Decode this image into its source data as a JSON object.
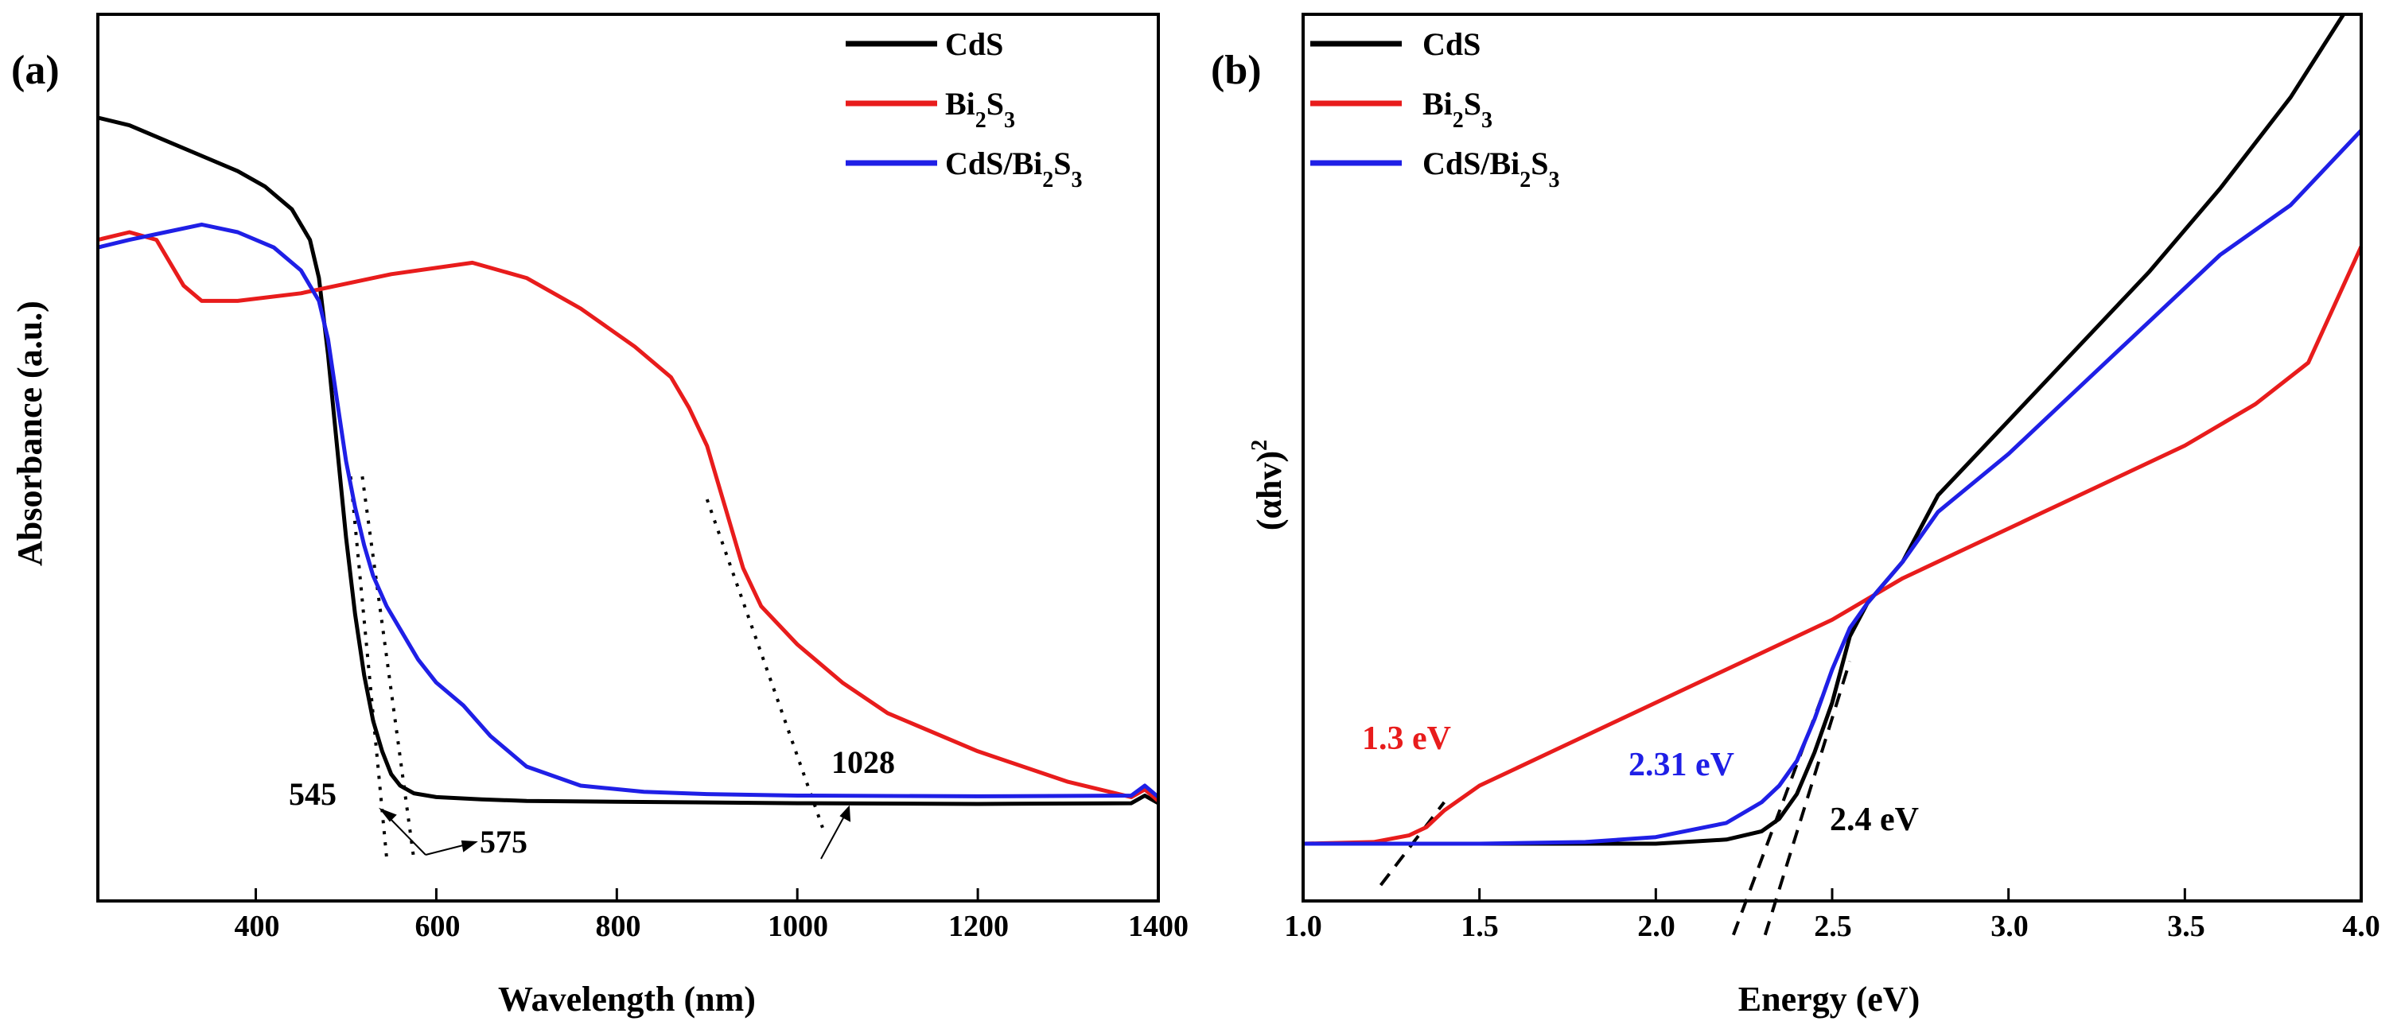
{
  "chart_data": [
    {
      "panel_label": "(a)",
      "type": "line",
      "xlabel": "Wavelength (nm)",
      "ylabel": "Absorbance (a.u.)",
      "xlim": [
        225,
        1400
      ],
      "ylim": [
        0,
        1
      ],
      "x_ticks": [
        400,
        600,
        800,
        1000,
        1200,
        1400
      ],
      "x_tick_labels": [
        "400",
        "600",
        "800",
        "1000",
        "1200",
        "1400"
      ],
      "legend": {
        "position": "top-right",
        "entries": [
          {
            "name": "CdS",
            "color": "#000000"
          },
          {
            "name": "Bi2S3",
            "color": "#e81c1c"
          },
          {
            "name": "CdS/Bi2S3",
            "color": "#1f1fe6"
          }
        ]
      },
      "series": [
        {
          "name": "CdS",
          "color": "#000000",
          "x": [
            225,
            260,
            300,
            340,
            380,
            410,
            440,
            460,
            470,
            480,
            490,
            500,
            510,
            520,
            530,
            540,
            550,
            560,
            575,
            600,
            650,
            700,
            800,
            1000,
            1200,
            1370,
            1385,
            1400
          ],
          "y": [
            0.95,
            0.94,
            0.92,
            0.9,
            0.88,
            0.86,
            0.83,
            0.79,
            0.74,
            0.64,
            0.52,
            0.4,
            0.3,
            0.22,
            0.16,
            0.12,
            0.09,
            0.075,
            0.065,
            0.06,
            0.057,
            0.055,
            0.054,
            0.052,
            0.051,
            0.052,
            0.062,
            0.052
          ]
        },
        {
          "name": "Bi2S3",
          "color": "#e81c1c",
          "x": [
            225,
            260,
            290,
            320,
            340,
            380,
            450,
            550,
            640,
            700,
            760,
            820,
            860,
            880,
            900,
            920,
            940,
            960,
            1000,
            1050,
            1100,
            1200,
            1300,
            1370,
            1385,
            1400
          ],
          "y": [
            0.79,
            0.8,
            0.79,
            0.73,
            0.71,
            0.71,
            0.72,
            0.745,
            0.76,
            0.74,
            0.7,
            0.65,
            0.61,
            0.57,
            0.52,
            0.44,
            0.36,
            0.31,
            0.26,
            0.21,
            0.17,
            0.12,
            0.08,
            0.06,
            0.07,
            0.055
          ]
        },
        {
          "name": "CdS/Bi2S3",
          "color": "#1f1fe6",
          "x": [
            225,
            260,
            300,
            340,
            380,
            420,
            450,
            470,
            480,
            490,
            500,
            510,
            520,
            530,
            545,
            560,
            580,
            600,
            630,
            660,
            700,
            760,
            830,
            900,
            1000,
            1200,
            1370,
            1385,
            1400
          ],
          "y": [
            0.78,
            0.79,
            0.8,
            0.81,
            0.8,
            0.78,
            0.75,
            0.71,
            0.66,
            0.58,
            0.5,
            0.44,
            0.39,
            0.35,
            0.31,
            0.28,
            0.24,
            0.21,
            0.18,
            0.14,
            0.1,
            0.075,
            0.067,
            0.064,
            0.062,
            0.061,
            0.062,
            0.075,
            0.06
          ]
        }
      ],
      "tangent_lines": [
        {
          "x": [
            505,
            545
          ],
          "y": [
            0.48,
            -0.02
          ],
          "color": "#000000"
        },
        {
          "x": [
            518,
            575
          ],
          "y": [
            0.48,
            -0.02
          ],
          "color": "#000000"
        },
        {
          "x": [
            900,
            1028
          ],
          "y": [
            0.45,
            0.02
          ],
          "color": "#000000"
        }
      ],
      "annotations": [
        {
          "text": "545",
          "target": 545
        },
        {
          "text": "575",
          "target": 575
        },
        {
          "text": "1028",
          "target": 1028
        }
      ]
    },
    {
      "panel_label": "(b)",
      "type": "line",
      "xlabel": "Energy (eV)",
      "ylabel": "(αhv)",
      "ylabel_superscript": "2",
      "xlim": [
        1.0,
        4.0
      ],
      "ylim": [
        0,
        1
      ],
      "x_ticks": [
        1.0,
        1.5,
        2.0,
        2.5,
        3.0,
        3.5,
        4.0
      ],
      "x_tick_labels": [
        "1.0",
        "1.5",
        "2.0",
        "2.5",
        "3.0",
        "3.5",
        "4.0"
      ],
      "legend": {
        "position": "top-left",
        "entries": [
          {
            "name": "CdS",
            "color": "#000000"
          },
          {
            "name": "Bi2S3",
            "color": "#e81c1c"
          },
          {
            "name": "CdS/Bi2S3",
            "color": "#1f1fe6"
          }
        ]
      },
      "series": [
        {
          "name": "CdS",
          "color": "#000000",
          "x": [
            1.0,
            1.5,
            2.0,
            2.2,
            2.3,
            2.35,
            2.4,
            2.45,
            2.5,
            2.55,
            2.6,
            2.7,
            2.8,
            3.0,
            3.2,
            3.4,
            3.6,
            3.8,
            3.95
          ],
          "y": [
            0.0,
            0.0,
            0.0,
            0.005,
            0.015,
            0.03,
            0.06,
            0.11,
            0.17,
            0.25,
            0.29,
            0.34,
            0.42,
            0.51,
            0.6,
            0.69,
            0.79,
            0.9,
            1.0
          ]
        },
        {
          "name": "Bi2S3",
          "color": "#e81c1c",
          "x": [
            1.0,
            1.2,
            1.3,
            1.35,
            1.4,
            1.5,
            1.7,
            1.9,
            2.1,
            2.3,
            2.5,
            2.7,
            2.9,
            3.1,
            3.3,
            3.5,
            3.7,
            3.85,
            4.0
          ],
          "y": [
            0.0,
            0.002,
            0.01,
            0.02,
            0.04,
            0.07,
            0.11,
            0.15,
            0.19,
            0.23,
            0.27,
            0.32,
            0.36,
            0.4,
            0.44,
            0.48,
            0.53,
            0.58,
            0.72
          ]
        },
        {
          "name": "CdS/Bi2S3",
          "color": "#1f1fe6",
          "x": [
            1.0,
            1.5,
            1.8,
            2.0,
            2.2,
            2.3,
            2.35,
            2.4,
            2.45,
            2.5,
            2.55,
            2.6,
            2.7,
            2.8,
            3.0,
            3.2,
            3.4,
            3.6,
            3.8,
            4.0
          ],
          "y": [
            0.0,
            0.0,
            0.002,
            0.008,
            0.025,
            0.05,
            0.07,
            0.1,
            0.15,
            0.21,
            0.26,
            0.29,
            0.34,
            0.4,
            0.47,
            0.55,
            0.63,
            0.71,
            0.77,
            0.86
          ]
        }
      ],
      "tangent_lines": [
        {
          "x": [
            1.22,
            1.4
          ],
          "y": [
            -0.05,
            0.05
          ],
          "color": "#000000"
        },
        {
          "x": [
            2.22,
            2.5
          ],
          "y": [
            -0.11,
            0.21
          ],
          "color": "#000000"
        },
        {
          "x": [
            2.31,
            2.55
          ],
          "y": [
            -0.11,
            0.22
          ],
          "color": "#000000"
        }
      ],
      "annotations": [
        {
          "text": "1.3 eV",
          "color": "#e81c1c",
          "target": 1.3
        },
        {
          "text": "2.31 eV",
          "color": "#1f1fe6",
          "target": 2.31
        },
        {
          "text": "2.4 eV",
          "color": "#000000",
          "target": 2.4
        }
      ]
    }
  ]
}
